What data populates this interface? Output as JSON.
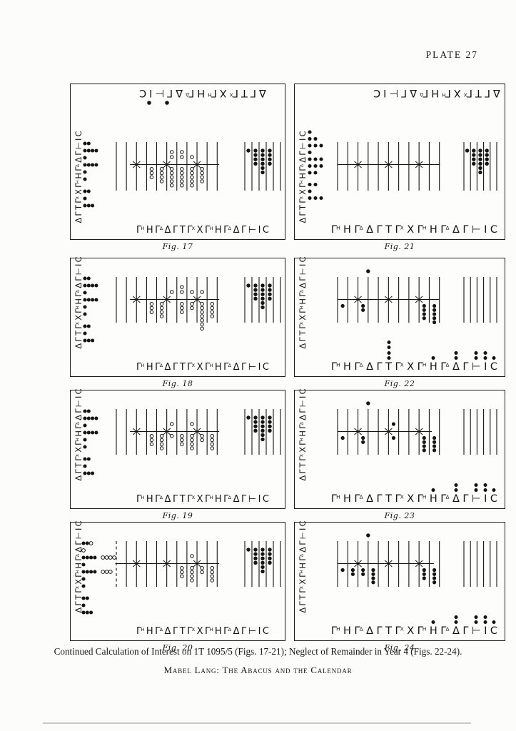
{
  "plate": {
    "label": "PLATE 27"
  },
  "inscriptions": {
    "top_tokens": [
      "Δ",
      "Γ",
      "Τ",
      "Γ^Χ",
      "Χ",
      "Γ^Η",
      "Η",
      "Γ^Δ",
      "Δ",
      "Γ",
      "⊢",
      "Ι",
      "C"
    ],
    "left_tokens": [
      "Δ",
      "Γ",
      "Τ",
      "Γ^Χ",
      "Χ",
      "Γ^Η",
      "Η",
      "Γ^Δ",
      "Δ",
      "Γ",
      "⊢",
      "Ι",
      "C"
    ],
    "bottom_tokens": [
      "Γ^Η",
      "Η",
      "Γ^Δ",
      "Δ",
      "Γ",
      "Τ",
      "Γ^Χ",
      "Χ",
      "Γ^Η",
      "Η",
      "Γ^Δ",
      "Δ",
      "Γ",
      "⊢",
      "Ι",
      "C"
    ]
  },
  "figures": [
    {
      "id": "fig17",
      "caption": "Fig. 17",
      "top_inscription": true,
      "top_dots": 2,
      "left_cluster": [
        "●●",
        "●●●●",
        "●",
        "●●●●",
        "●",
        "●",
        "gap",
        "●●",
        "●",
        "●●●"
      ],
      "counter_style": "open",
      "above": {
        "6": 2,
        "7": 2,
        "8": 1
      },
      "below": {
        "4": 3,
        "5": 4,
        "6": 5,
        "7": 5,
        "8": 5,
        "9": 4
      },
      "right_dots": [
        1,
        4,
        6,
        4
      ],
      "float_dot": false,
      "dashed_first_line": false,
      "bottom_dots": {}
    },
    {
      "id": "fig21",
      "caption": "Fig. 21",
      "top_inscription": true,
      "top_dots": 0,
      "left_cluster": [
        "●",
        "●●",
        "●●●",
        "●",
        "●●●",
        "●●●",
        "●●",
        "gap",
        "●●",
        "●",
        "●●●"
      ],
      "counter_style": "open",
      "above": {},
      "below": {},
      "right_dots": [
        1,
        4,
        6,
        4
      ],
      "float_dot": false,
      "dashed_first_line": false,
      "bottom_dots": {}
    },
    {
      "id": "fig18",
      "caption": "Fig. 18",
      "top_inscription": false,
      "top_dots": 0,
      "left_cluster": [
        "●●",
        "●●●●",
        "●",
        "●●●●",
        "●",
        "●",
        "gap",
        "●●",
        "●",
        "●●●"
      ],
      "counter_style": "open",
      "above": {
        "6": 1,
        "7": 2,
        "8": 1,
        "9": 1
      },
      "below": {
        "4": 3,
        "5": 4,
        "7": 3,
        "8": 2,
        "9": 7,
        "10": 4
      },
      "right_dots": [
        1,
        4,
        6,
        4
      ],
      "float_dot": false,
      "dashed_first_line": false,
      "bottom_dots": {}
    },
    {
      "id": "fig22",
      "caption": "Fig. 22",
      "top_inscription": false,
      "top_dots": 0,
      "left_cluster": [],
      "counter_style": "filled",
      "above": {},
      "below": {
        "1": 1,
        "3": 2,
        "9": 4,
        "10": 5
      },
      "right_dots": [],
      "float_dot": true,
      "dashed_first_line": false,
      "bottom_dots": {
        "6": 4,
        "10": 1,
        "12": 2,
        "14": 2,
        "15": 2,
        "16": 1
      }
    },
    {
      "id": "fig19",
      "caption": "Fig. 19",
      "top_inscription": false,
      "top_dots": 0,
      "left_cluster": [
        "●●",
        "●●●●",
        "●",
        "●●●●",
        "●",
        "●",
        "gap",
        "●●",
        "●",
        "●●●"
      ],
      "counter_style": "open",
      "above": {
        "6": 1,
        "8": 1
      },
      "below": {
        "4": 3,
        "5": 4,
        "6": 1,
        "7": 3,
        "8": 4,
        "9": 2,
        "10": 4
      },
      "right_dots": [
        1,
        4,
        6,
        4
      ],
      "float_dot": false,
      "dashed_first_line": false,
      "bottom_dots": {}
    },
    {
      "id": "fig23",
      "caption": "Fig. 23",
      "top_inscription": false,
      "top_dots": 0,
      "left_cluster": [],
      "counter_style": "filled",
      "above": {
        "6": 1
      },
      "below": {
        "1": 1,
        "3": 2,
        "6": 1,
        "9": 4,
        "10": 4
      },
      "right_dots": [],
      "float_dot": true,
      "dashed_first_line": false,
      "bottom_dots": {
        "10": 1,
        "12": 2,
        "14": 2,
        "15": 2,
        "16": 1
      }
    },
    {
      "id": "fig20",
      "caption": "Fig. 20",
      "top_inscription": false,
      "top_dots": 0,
      "left_cluster": [
        "●●○",
        "○",
        "●●●● ○○○○",
        "●",
        "●●●● ○○○",
        "●",
        "●",
        "gap",
        "●●",
        "●",
        "●●●"
      ],
      "counter_style": "open",
      "above": {
        "8": 1
      },
      "below": {
        "7": 3,
        "8": 4,
        "9": 2,
        "10": 4
      },
      "right_dots": [
        1,
        4,
        6,
        4
      ],
      "float_dot": false,
      "dashed_first_line": true,
      "bottom_dots": {}
    },
    {
      "id": "fig24",
      "caption": "Fig. 24",
      "top_inscription": false,
      "top_dots": 0,
      "left_cluster": [],
      "counter_style": "filled",
      "above": {},
      "below": {
        "1": 1,
        "2": 2,
        "3": 2,
        "4": 4,
        "9": 3,
        "10": 4
      },
      "right_dots": [],
      "float_dot": true,
      "dashed_first_line": false,
      "bottom_dots": {
        "10": 1,
        "12": 2,
        "14": 2,
        "15": 2,
        "16": 1
      }
    }
  ],
  "captions": {
    "description": "Continued Calculation of Interest on 1T 1095/5 (Figs. 17-21); Neglect of Remainder in Year 4 (Figs. 22-24).",
    "credit": "Mabel Lang: The Abacus and the Calendar"
  },
  "colors": {
    "ink": "#141414",
    "paper": "#fcfcfb"
  }
}
